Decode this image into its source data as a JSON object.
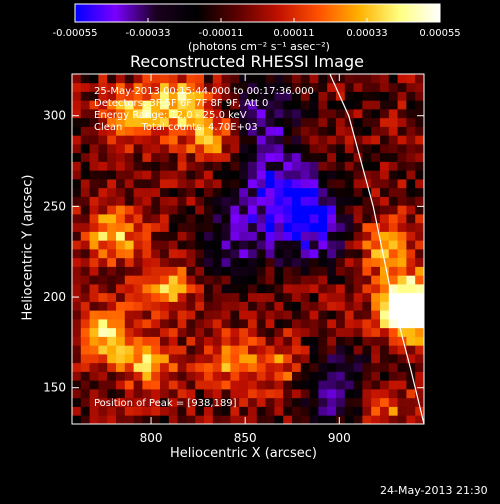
{
  "chart_data": {
    "type": "heatmap",
    "title": "Reconstructed RHESSI Image",
    "colorbar": {
      "ticks": [
        "-0.00055",
        "-0.00033",
        "-0.00011",
        "0.00011",
        "0.00033",
        "0.00055"
      ],
      "vmin": -0.00055,
      "vmax": 0.00055,
      "unit_label": "(photons cm⁻² s⁻¹ asec⁻²)",
      "colormap": [
        "#0000ff",
        "#7a00ff",
        "#1a001f",
        "#000000",
        "#5a0000",
        "#c01000",
        "#ff5000",
        "#ffb000",
        "#ffff80",
        "#ffffff"
      ]
    },
    "xlabel": "Heliocentric X (arcsec)",
    "ylabel": "Heliocentric Y (arcsec)",
    "xlim": [
      758,
      945
    ],
    "ylim": [
      130,
      323
    ],
    "xticks": [
      800,
      850,
      900
    ],
    "yticks": [
      150,
      200,
      250,
      300
    ],
    "annotations": [
      "25-May-2013 00:15:44.000 to 00:17:36.000",
      "Detectors: 3F 5F 6F 7F 8F 9F, Att 0",
      "Energy Range: 12.0 - 25.0 keV",
      "Clean      Total counts: 4.70E+03"
    ],
    "peak_label": "Position of Peak = [938,189]",
    "peak": [
      938,
      189
    ],
    "limb_line": [
      [
        895,
        323
      ],
      [
        905,
        300
      ],
      [
        918,
        250
      ],
      [
        928,
        200
      ],
      [
        938,
        160
      ],
      [
        945,
        130
      ]
    ],
    "hotspots": [
      {
        "x": 790,
        "y": 300,
        "value": 0.00046
      },
      {
        "x": 815,
        "y": 307,
        "value": 0.0004
      },
      {
        "x": 832,
        "y": 290,
        "value": 0.00035
      },
      {
        "x": 780,
        "y": 235,
        "value": 0.00038
      },
      {
        "x": 808,
        "y": 205,
        "value": 0.00035
      },
      {
        "x": 775,
        "y": 180,
        "value": 0.0004
      },
      {
        "x": 798,
        "y": 165,
        "value": 0.00035
      },
      {
        "x": 842,
        "y": 165,
        "value": 0.00028
      },
      {
        "x": 868,
        "y": 162,
        "value": 0.00025
      },
      {
        "x": 925,
        "y": 230,
        "value": 0.00035
      },
      {
        "x": 935,
        "y": 200,
        "value": 0.0005
      },
      {
        "x": 938,
        "y": 189,
        "value": 0.00055
      },
      {
        "x": 922,
        "y": 140,
        "value": 0.0003
      }
    ],
    "coldspots": [
      {
        "x": 868,
        "y": 260,
        "value": -0.0004
      },
      {
        "x": 885,
        "y": 240,
        "value": -0.00045
      },
      {
        "x": 860,
        "y": 300,
        "value": -0.0003
      },
      {
        "x": 900,
        "y": 150,
        "value": -0.00035
      },
      {
        "x": 845,
        "y": 230,
        "value": -0.0003
      }
    ]
  },
  "footer": {
    "timestamp": "24-May-2013 21:30"
  }
}
